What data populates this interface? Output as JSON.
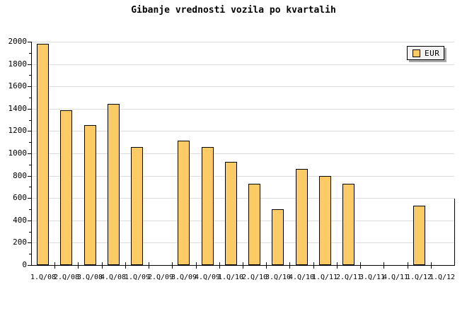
{
  "title": "Gibanje vrednosti vozila po kvartalih",
  "legend": {
    "label": "EUR"
  },
  "colors": {
    "background": "#ffffff",
    "bar_fill": "#fccb66",
    "bar_border": "#000000",
    "gridline": "#dcdcdc",
    "axis": "#000000",
    "legend_background": "#f2f2f2",
    "legend_shadow": "#aaaaaa",
    "text": "#000000"
  },
  "chart_data": {
    "type": "bar",
    "title": "Gibanje vrednosti vozila po kvartalih",
    "categories": [
      "1.Q/08",
      "2.Q/08",
      "3.Q/08",
      "4.Q/08",
      "1.Q/09",
      "2.Q/09",
      "3.Q/09",
      "4.Q/09",
      "1.Q/10",
      "2.Q/10",
      "3.Q/10",
      "4.Q/10",
      "1.Q/11",
      "2.Q/11",
      "3.Q/11",
      "4.Q/11",
      "1.Q/12",
      "1.Q/12"
    ],
    "series": [
      {
        "name": "EUR",
        "values": [
          1980,
          1385,
          1255,
          1445,
          1055,
          null,
          1115,
          1055,
          925,
          730,
          500,
          860,
          795,
          730,
          null,
          null,
          530,
          null
        ]
      }
    ],
    "xlabel": "",
    "ylabel": "",
    "ylim": [
      0,
      2000
    ],
    "ytick_major_step": 200,
    "ytick_minor_step": 100,
    "yticks": [
      0,
      200,
      400,
      600,
      800,
      1000,
      1200,
      1400,
      1600,
      1800,
      2000
    ],
    "grid": "horizontal-major",
    "legend_position": "top-right"
  }
}
